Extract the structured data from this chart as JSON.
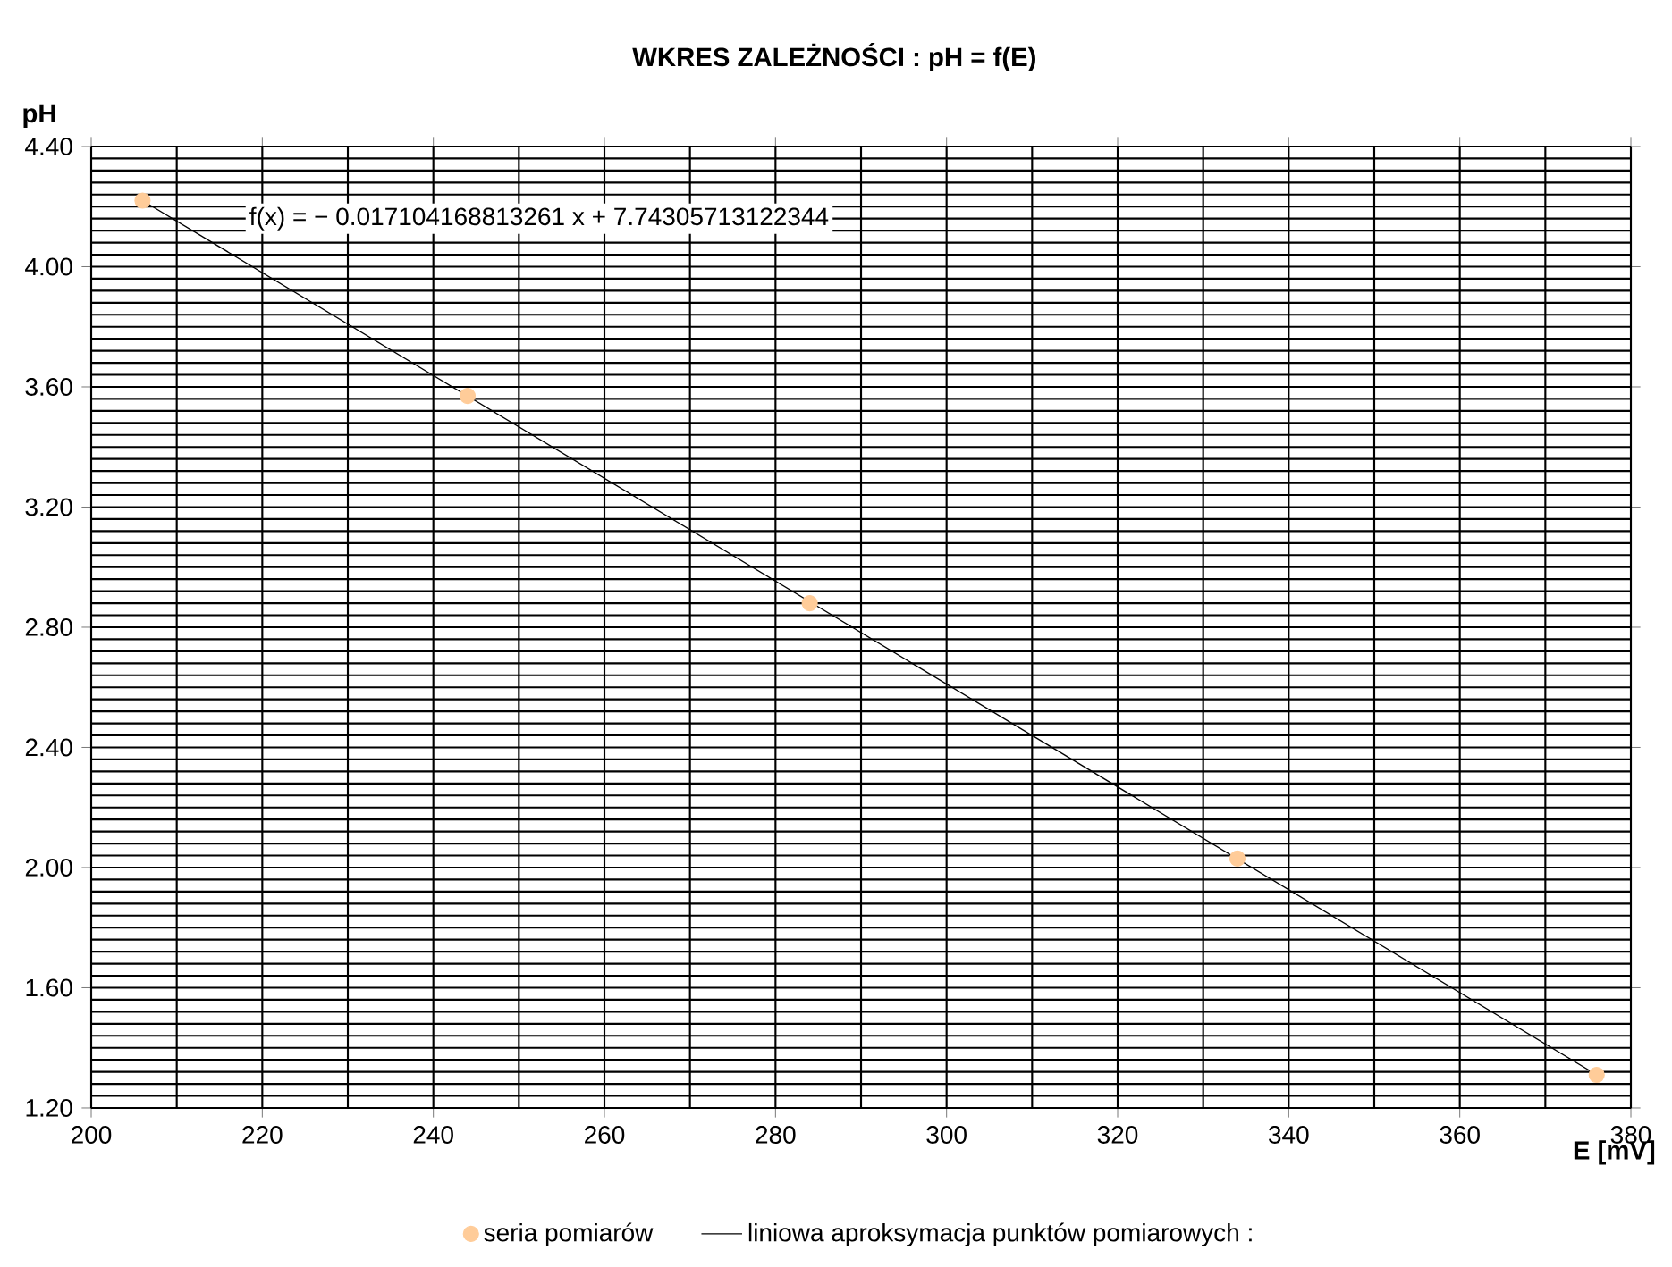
{
  "chart_data": {
    "type": "scatter",
    "title": "WKRES ZALEŻNOŚCI : pH = f(E)",
    "xlabel": "E [mV]",
    "ylabel": "pH",
    "xlim": [
      200,
      380
    ],
    "xticks": [
      200,
      220,
      240,
      260,
      280,
      300,
      320,
      340,
      360,
      380
    ],
    "ylim": [
      1.2,
      4.4
    ],
    "yticks": [
      {
        "value": 1.2,
        "label": "1.20"
      },
      {
        "value": 1.6,
        "label": "1.60"
      },
      {
        "value": 2.0,
        "label": "2.00"
      },
      {
        "value": 2.4,
        "label": "2.40"
      },
      {
        "value": 2.8,
        "label": "2.80"
      },
      {
        "value": 3.2,
        "label": "3.20"
      },
      {
        "value": 3.6,
        "label": "3.60"
      },
      {
        "value": 4.0,
        "label": "4.00"
      },
      {
        "value": 4.4,
        "label": "4.40"
      }
    ],
    "grid": true,
    "legend": "bottom",
    "annotations": [
      "f(x) = − 0.017104168813261 x + 7.74305713122344"
    ],
    "series": [
      {
        "name": "seria pomiarów",
        "color": "#ffcc99",
        "marker": "circle",
        "x": [
          206,
          244,
          284,
          334,
          376
        ],
        "values": [
          4.22,
          3.57,
          2.88,
          2.03,
          1.31
        ]
      },
      {
        "name": "liniowa aproksymacja punktów pomiarowych :",
        "type": "line",
        "color": "#000000",
        "line_style": "solid",
        "marker": "none",
        "x": [
          206,
          376
        ],
        "values": [
          4.22,
          1.31
        ]
      }
    ]
  }
}
